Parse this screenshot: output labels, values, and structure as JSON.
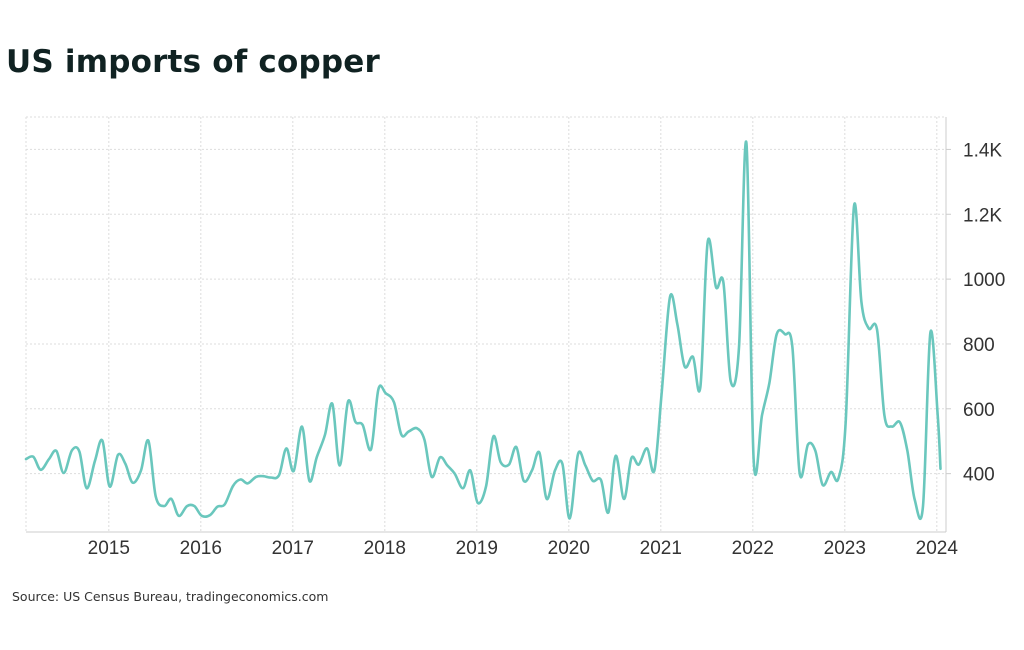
{
  "title": "US imports of copper",
  "source": "Source: US Census Bureau, tradingeconomics.com",
  "colors": {
    "line": "#6ac7bd",
    "grid": "#dddddd",
    "text": "#333333",
    "title": "#102222"
  },
  "chart_data": {
    "type": "line",
    "title": "US imports of copper",
    "xlabel": "",
    "ylabel": "",
    "xlim": [
      2014.1,
      2024.1
    ],
    "ylim": [
      220,
      1500
    ],
    "grid": true,
    "y_axis_side": "right",
    "x_ticks": [
      {
        "value": 2015,
        "label": "2015"
      },
      {
        "value": 2016,
        "label": "2016"
      },
      {
        "value": 2017,
        "label": "2017"
      },
      {
        "value": 2018,
        "label": "2018"
      },
      {
        "value": 2019,
        "label": "2019"
      },
      {
        "value": 2020,
        "label": "2020"
      },
      {
        "value": 2021,
        "label": "2021"
      },
      {
        "value": 2022,
        "label": "2022"
      },
      {
        "value": 2023,
        "label": "2023"
      },
      {
        "value": 2024,
        "label": "2024"
      }
    ],
    "y_ticks": [
      {
        "value": 400,
        "label": "400"
      },
      {
        "value": 600,
        "label": "600"
      },
      {
        "value": 800,
        "label": "800"
      },
      {
        "value": 1000,
        "label": "1000"
      },
      {
        "value": 1200,
        "label": "1.2K"
      },
      {
        "value": 1400,
        "label": "1.4K"
      }
    ],
    "series": [
      {
        "name": "",
        "points": [
          [
            2014.1,
            445
          ],
          [
            2014.18,
            452
          ],
          [
            2014.26,
            412
          ],
          [
            2014.35,
            445
          ],
          [
            2014.43,
            470
          ],
          [
            2014.51,
            402
          ],
          [
            2014.6,
            472
          ],
          [
            2014.68,
            468
          ],
          [
            2014.76,
            355
          ],
          [
            2014.85,
            440
          ],
          [
            2014.93,
            502
          ],
          [
            2015.01,
            360
          ],
          [
            2015.1,
            458
          ],
          [
            2015.18,
            430
          ],
          [
            2015.26,
            372
          ],
          [
            2015.35,
            410
          ],
          [
            2015.43,
            502
          ],
          [
            2015.51,
            330
          ],
          [
            2015.6,
            300
          ],
          [
            2015.68,
            322
          ],
          [
            2015.76,
            270
          ],
          [
            2015.85,
            300
          ],
          [
            2015.93,
            300
          ],
          [
            2016.01,
            270
          ],
          [
            2016.1,
            272
          ],
          [
            2016.18,
            298
          ],
          [
            2016.26,
            305
          ],
          [
            2016.35,
            362
          ],
          [
            2016.43,
            382
          ],
          [
            2016.51,
            370
          ],
          [
            2016.6,
            390
          ],
          [
            2016.68,
            392
          ],
          [
            2016.76,
            388
          ],
          [
            2016.85,
            395
          ],
          [
            2016.93,
            478
          ],
          [
            2017.01,
            408
          ],
          [
            2017.1,
            545
          ],
          [
            2017.18,
            378
          ],
          [
            2017.26,
            450
          ],
          [
            2017.35,
            520
          ],
          [
            2017.43,
            615
          ],
          [
            2017.51,
            425
          ],
          [
            2017.6,
            622
          ],
          [
            2017.68,
            560
          ],
          [
            2017.76,
            550
          ],
          [
            2017.85,
            475
          ],
          [
            2017.93,
            660
          ],
          [
            2018.01,
            648
          ],
          [
            2018.1,
            620
          ],
          [
            2018.18,
            520
          ],
          [
            2018.26,
            530
          ],
          [
            2018.35,
            540
          ],
          [
            2018.43,
            505
          ],
          [
            2018.51,
            390
          ],
          [
            2018.6,
            450
          ],
          [
            2018.68,
            425
          ],
          [
            2018.76,
            400
          ],
          [
            2018.85,
            355
          ],
          [
            2018.93,
            410
          ],
          [
            2019.01,
            310
          ],
          [
            2019.1,
            360
          ],
          [
            2019.18,
            515
          ],
          [
            2019.26,
            435
          ],
          [
            2019.35,
            428
          ],
          [
            2019.43,
            482
          ],
          [
            2019.51,
            378
          ],
          [
            2019.6,
            410
          ],
          [
            2019.68,
            465
          ],
          [
            2019.76,
            322
          ],
          [
            2019.85,
            410
          ],
          [
            2019.93,
            430
          ],
          [
            2020.01,
            262
          ],
          [
            2020.1,
            460
          ],
          [
            2020.18,
            425
          ],
          [
            2020.26,
            378
          ],
          [
            2020.35,
            380
          ],
          [
            2020.43,
            280
          ],
          [
            2020.51,
            455
          ],
          [
            2020.6,
            322
          ],
          [
            2020.68,
            448
          ],
          [
            2020.76,
            428
          ],
          [
            2020.85,
            478
          ],
          [
            2020.93,
            410
          ],
          [
            2021.01,
            650
          ],
          [
            2021.1,
            945
          ],
          [
            2021.18,
            860
          ],
          [
            2021.26,
            730
          ],
          [
            2021.35,
            760
          ],
          [
            2021.43,
            668
          ],
          [
            2021.51,
            1115
          ],
          [
            2021.6,
            975
          ],
          [
            2021.68,
            990
          ],
          [
            2021.76,
            685
          ],
          [
            2021.85,
            790
          ],
          [
            2021.93,
            1420
          ],
          [
            2022.01,
            440
          ],
          [
            2022.1,
            580
          ],
          [
            2022.18,
            680
          ],
          [
            2022.26,
            830
          ],
          [
            2022.35,
            830
          ],
          [
            2022.43,
            790
          ],
          [
            2022.51,
            400
          ],
          [
            2022.6,
            490
          ],
          [
            2022.68,
            470
          ],
          [
            2022.76,
            365
          ],
          [
            2022.85,
            405
          ],
          [
            2022.93,
            385
          ],
          [
            2023.01,
            560
          ],
          [
            2023.1,
            1225
          ],
          [
            2023.18,
            930
          ],
          [
            2023.26,
            848
          ],
          [
            2023.35,
            845
          ],
          [
            2023.43,
            580
          ],
          [
            2023.51,
            545
          ],
          [
            2023.6,
            558
          ],
          [
            2023.68,
            470
          ],
          [
            2023.76,
            320
          ],
          [
            2023.85,
            300
          ],
          [
            2023.93,
            835
          ],
          [
            2024.01,
            580
          ],
          [
            2024.04,
            415
          ]
        ]
      }
    ]
  }
}
